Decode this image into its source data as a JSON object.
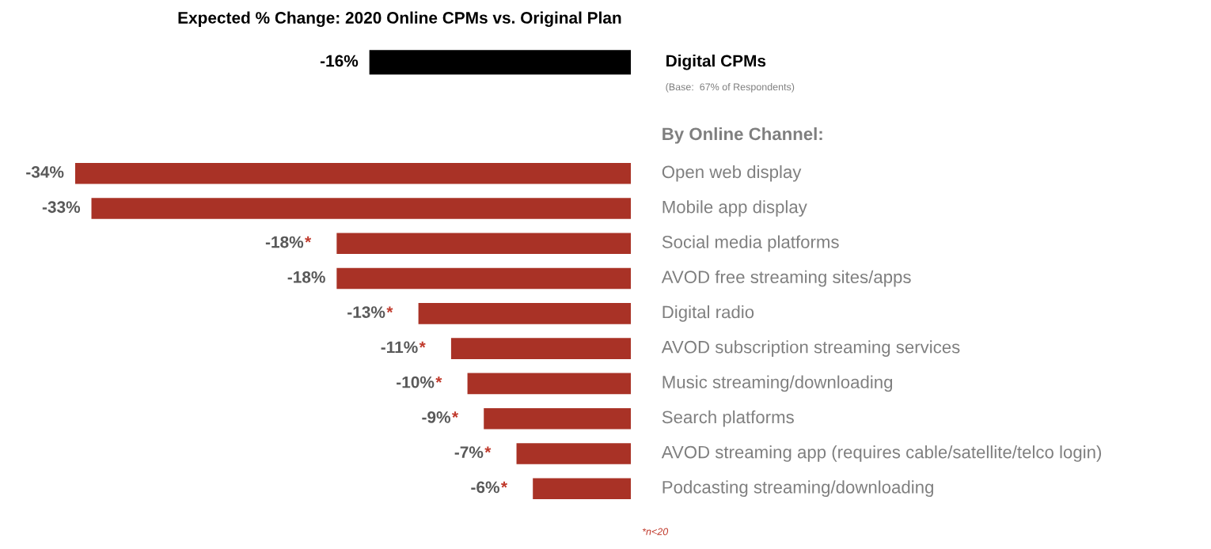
{
  "chart_data": [
    {
      "type": "bar",
      "orientation": "horizontal",
      "title": "Expected % Change: 2020 Online CPMs vs. Original Plan",
      "categories": [
        "Digital CPMs"
      ],
      "values": [
        -16
      ],
      "colors": [
        "#000000"
      ],
      "value_labels": [
        "-16%"
      ],
      "annotations": [
        "(Base:  67% of Respondents)"
      ]
    },
    {
      "type": "bar",
      "orientation": "horizontal",
      "title": "By Online Channel:",
      "categories": [
        "Open web display",
        "Mobile app display",
        "Social media platforms",
        "AVOD free streaming sites/apps",
        "Digital radio",
        "AVOD subscription streaming services",
        "Music streaming/downloading",
        "Search platforms",
        "AVOD streaming app (requires cable/satellite/telco login)",
        "Podcasting streaming/downloading"
      ],
      "values": [
        -34,
        -33,
        -18,
        -18,
        -13,
        -11,
        -10,
        -9,
        -7,
        -6
      ],
      "color": "#a93226",
      "value_labels": [
        "-34%",
        "-33%",
        "-18%*",
        "-18%",
        "-13%*",
        "-11%*",
        "-10%*",
        "-9%*",
        "-7%*",
        "-6%*"
      ],
      "annotations": [
        "*n<20"
      ]
    }
  ]
}
